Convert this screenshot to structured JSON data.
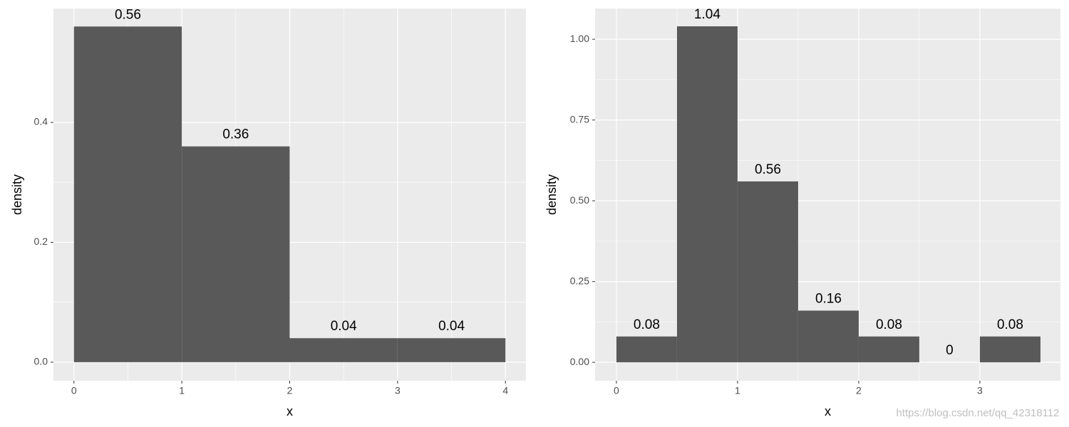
{
  "chart_data": [
    {
      "type": "histogram",
      "xlabel": "x",
      "ylabel": "density",
      "bins": [
        0,
        1,
        2,
        3,
        4
      ],
      "values": [
        0.56,
        0.36,
        0.04,
        0.04
      ],
      "color": "#595959",
      "xlim": [
        -0.19,
        4.19
      ],
      "ylim": [
        -0.031,
        0.59
      ],
      "xticks": [
        0,
        1,
        2,
        3,
        4
      ],
      "yticks": [
        {
          "value": 0,
          "label": "0.0"
        },
        0.2,
        0.4
      ],
      "grid": true
    },
    {
      "type": "histogram",
      "xlabel": "x",
      "ylabel": "density",
      "bins": [
        0,
        0.5,
        1,
        1.5,
        2,
        2.5,
        3,
        3.5
      ],
      "values": [
        0.08,
        1.04,
        0.56,
        0.16,
        0.08,
        0,
        0.08
      ],
      "color": "#595959",
      "xlim": [
        -0.176,
        3.665
      ],
      "ylim": [
        -0.057,
        1.095
      ],
      "xticks": [
        0,
        1,
        2,
        3
      ],
      "yticks": [
        {
          "value": 0,
          "label": "0.00"
        },
        0.25,
        {
          "value": 0.5,
          "label": "0.50"
        },
        0.75,
        {
          "value": 1,
          "label": "1.00"
        }
      ],
      "grid": true
    }
  ],
  "watermark": "https://blog.csdn.net/qq_42318112"
}
